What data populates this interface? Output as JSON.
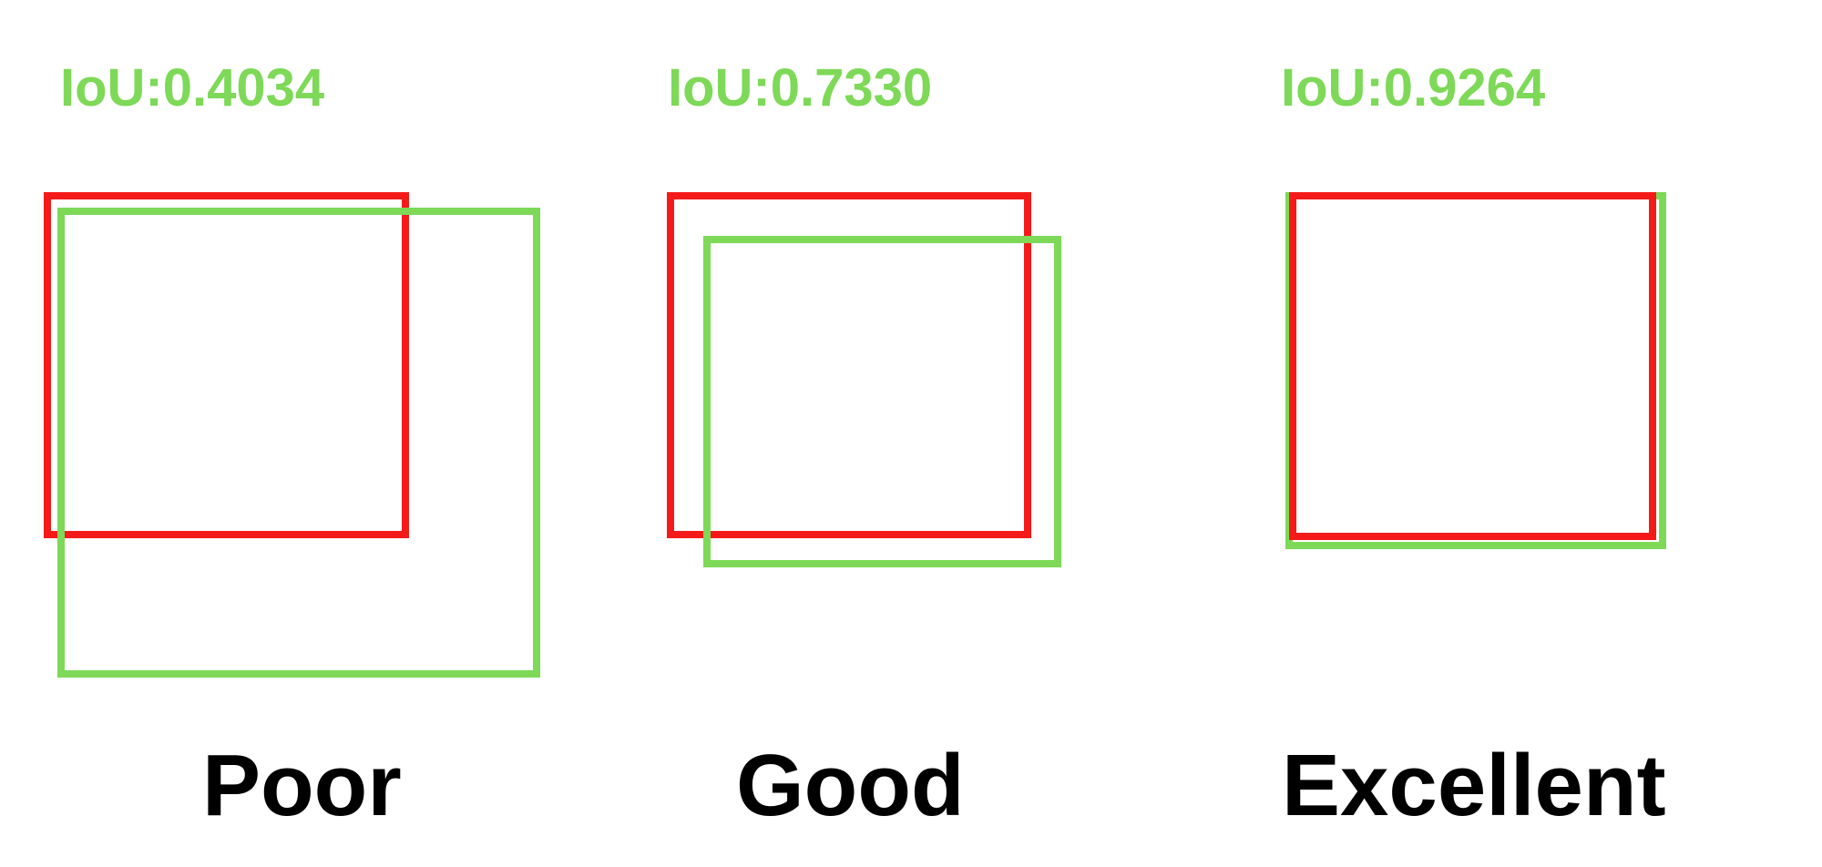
{
  "colors": {
    "iou_text": "#7dd957",
    "predicted_box": "#f51a1a",
    "ground_truth_box": "#7dd957",
    "quality_text": "#000000",
    "background": "#ffffff"
  },
  "examples": [
    {
      "iou_label": "IoU:0.4034",
      "quality": "Poor"
    },
    {
      "iou_label": "IoU:0.7330",
      "quality": "Good"
    },
    {
      "iou_label": "IoU:0.9264",
      "quality": "Excellent"
    }
  ]
}
